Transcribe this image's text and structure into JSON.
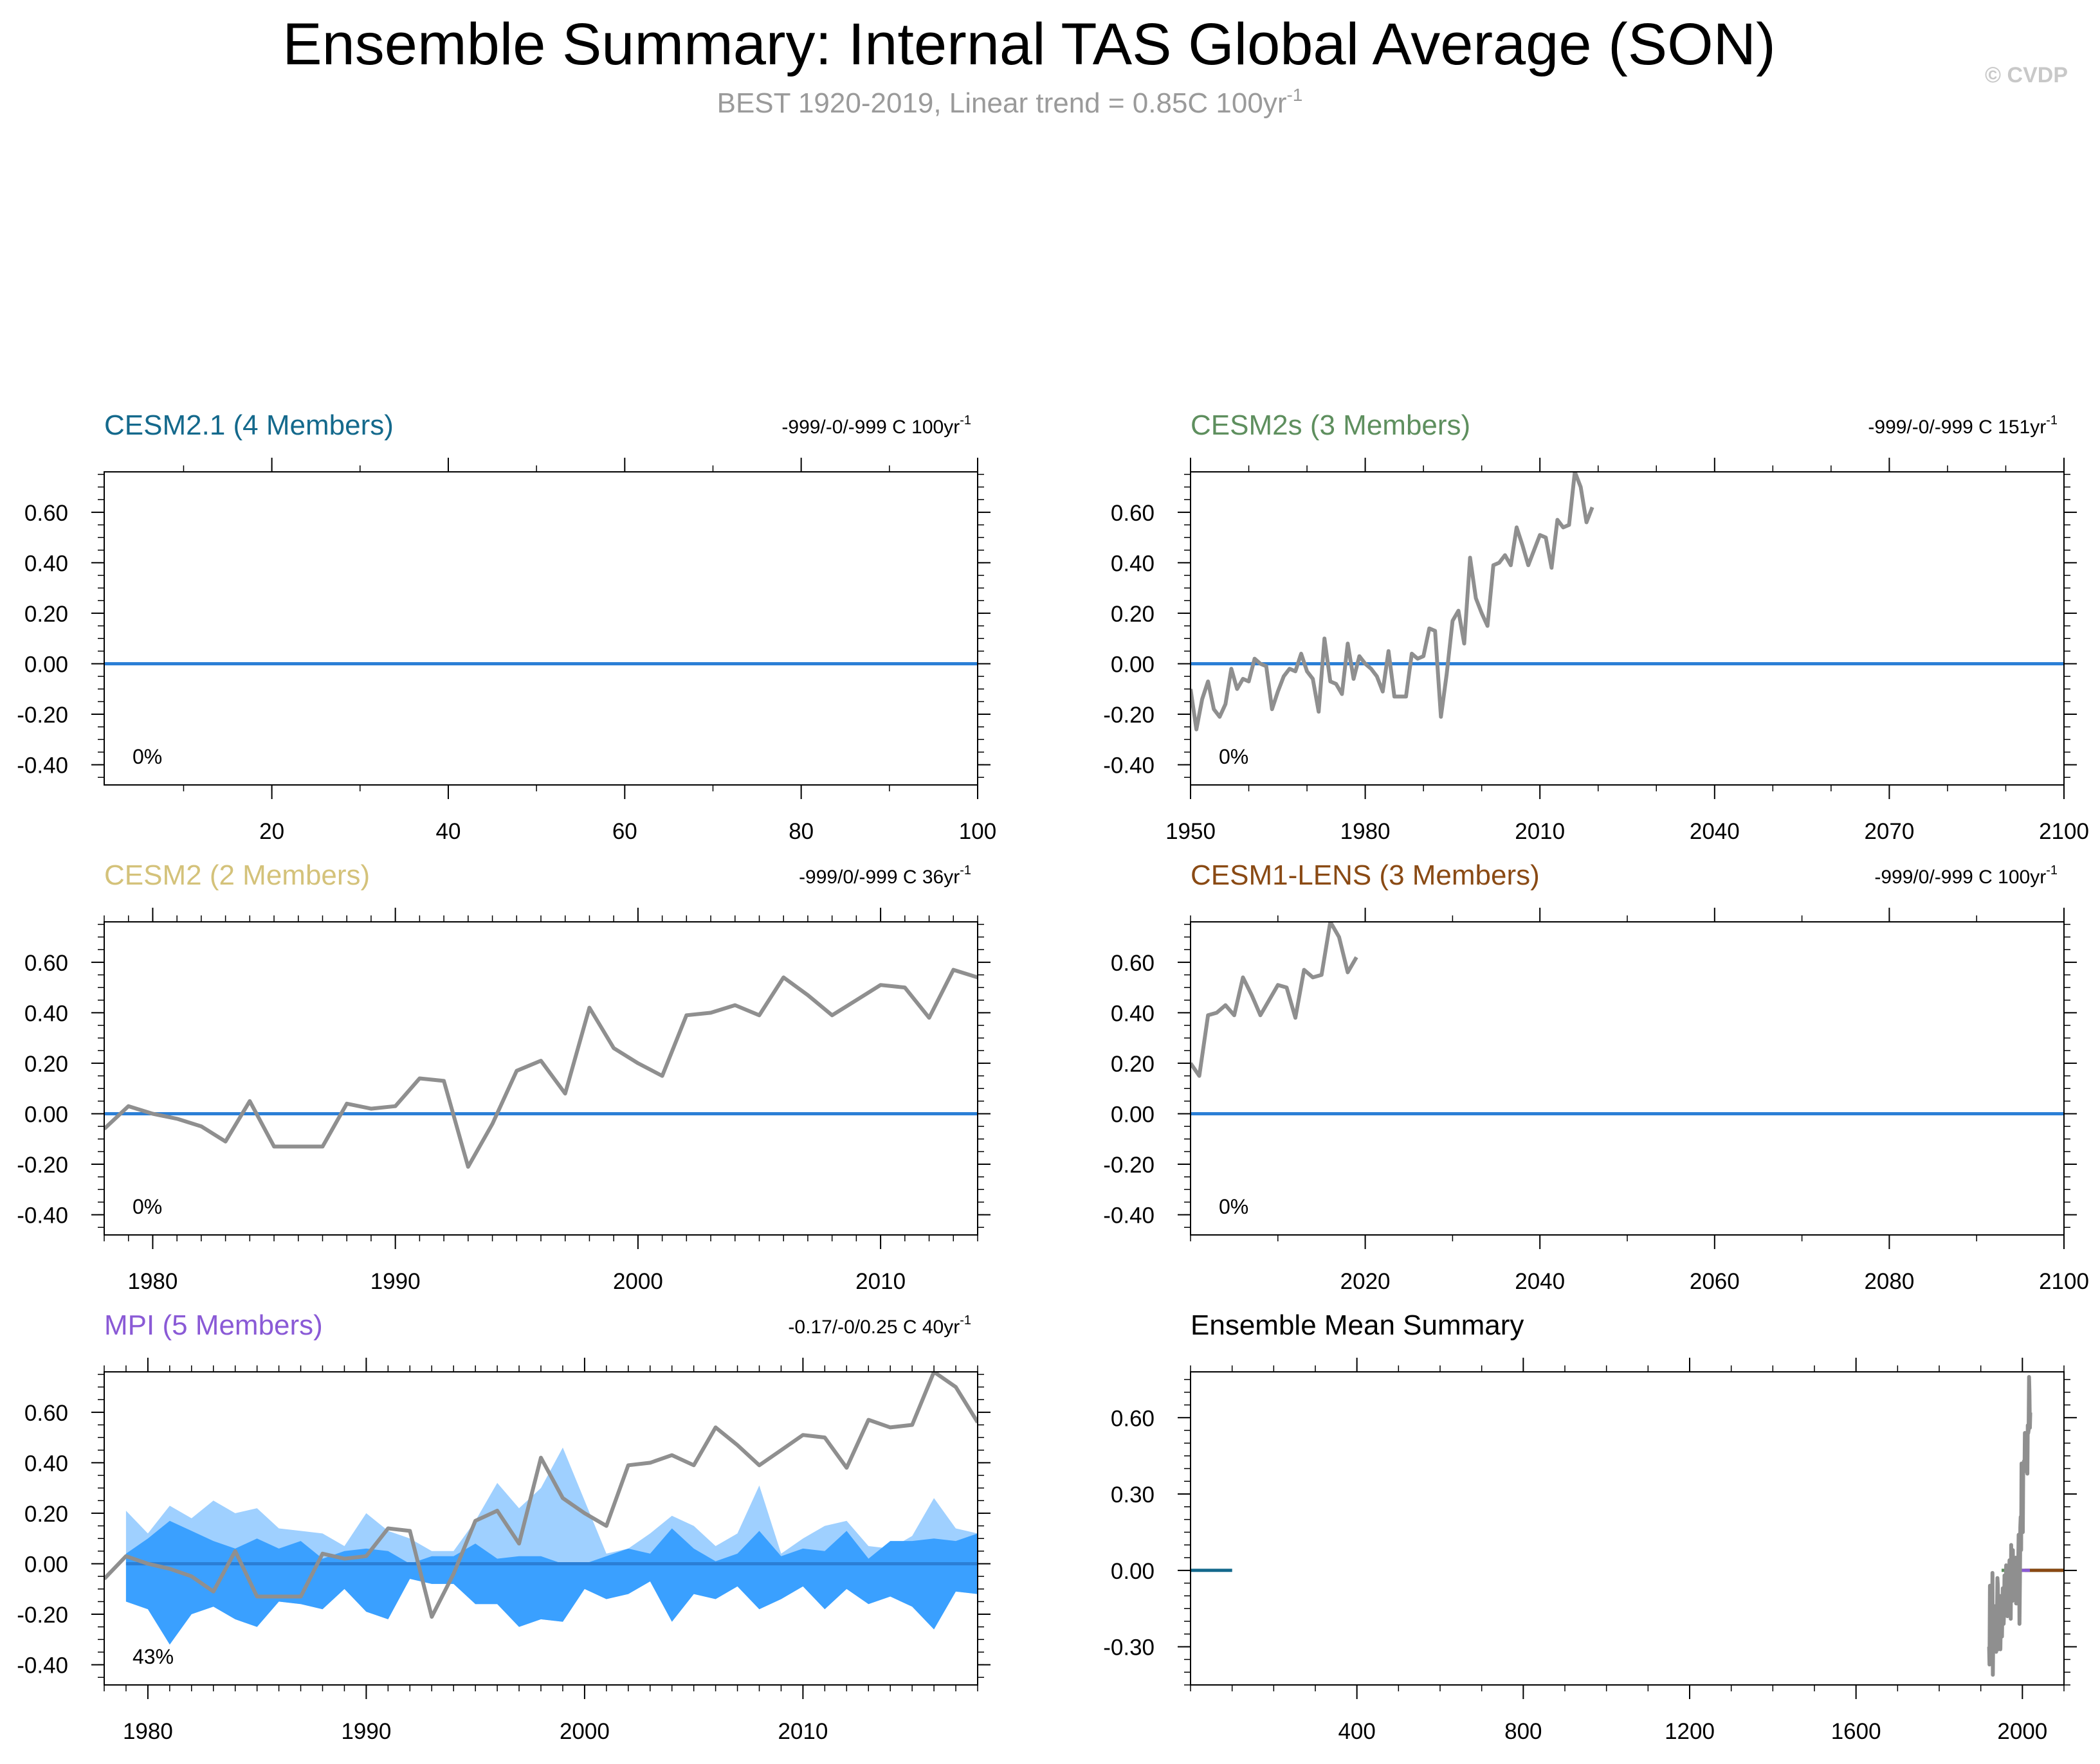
{
  "header": {
    "title": "Ensemble Summary: Internal TAS Global Average (SON)",
    "subtitle": "BEST 1920-2019, Linear trend = 0.85C 100yr",
    "subtitle_sup": "-1",
    "copyright": "© CVDP"
  },
  "colors": {
    "obs_line": "#8f8f8f",
    "zero_line": "#2b7fd6",
    "spread_outer": "#9fd0ff",
    "spread_inner": "#3aa0ff"
  },
  "observations": {
    "years": [
      1920,
      1921,
      1922,
      1923,
      1924,
      1925,
      1926,
      1927,
      1928,
      1929,
      1930,
      1931,
      1932,
      1933,
      1934,
      1935,
      1936,
      1937,
      1938,
      1939,
      1940,
      1941,
      1942,
      1943,
      1944,
      1945,
      1946,
      1947,
      1948,
      1949,
      1950,
      1951,
      1952,
      1953,
      1954,
      1955,
      1956,
      1957,
      1958,
      1959,
      1960,
      1961,
      1962,
      1963,
      1964,
      1965,
      1966,
      1967,
      1968,
      1969,
      1970,
      1971,
      1972,
      1973,
      1974,
      1975,
      1976,
      1977,
      1978,
      1979,
      1980,
      1981,
      1982,
      1983,
      1984,
      1985,
      1986,
      1987,
      1988,
      1989,
      1990,
      1991,
      1992,
      1993,
      1994,
      1995,
      1996,
      1997,
      1998,
      1999,
      2000,
      2001,
      2002,
      2003,
      2004,
      2005,
      2006,
      2007,
      2008,
      2009,
      2010,
      2011,
      2012,
      2013,
      2014,
      2015,
      2016,
      2017,
      2018,
      2019
    ],
    "values": [
      -0.3,
      -0.37,
      -0.06,
      -0.11,
      -0.06,
      -0.11,
      -0.31,
      -0.35,
      -0.01,
      -0.41,
      -0.24,
      -0.21,
      -0.14,
      -0.21,
      -0.15,
      -0.2,
      -0.29,
      -0.32,
      -0.14,
      -0.16,
      -0.03,
      -0.06,
      -0.31,
      -0.21,
      -0.11,
      -0.1,
      -0.22,
      -0.31,
      -0.21,
      -0.13,
      -0.1,
      -0.26,
      -0.14,
      -0.07,
      -0.18,
      -0.21,
      -0.16,
      -0.02,
      -0.1,
      -0.06,
      -0.07,
      0.02,
      0.0,
      -0.01,
      -0.18,
      -0.11,
      -0.05,
      -0.02,
      -0.03,
      0.04,
      -0.03,
      -0.06,
      -0.19,
      0.1,
      -0.07,
      -0.08,
      -0.12,
      0.08,
      -0.06,
      0.03,
      0.0,
      -0.02,
      -0.05,
      -0.11,
      0.05,
      -0.13,
      -0.13,
      -0.13,
      0.04,
      0.02,
      0.03,
      0.14,
      0.13,
      -0.21,
      -0.04,
      0.17,
      0.21,
      0.08,
      0.42,
      0.26,
      0.2,
      0.15,
      0.39,
      0.4,
      0.43,
      0.39,
      0.54,
      0.47,
      0.39,
      0.45,
      0.51,
      0.5,
      0.38,
      0.57,
      0.54,
      0.55,
      0.76,
      0.7,
      0.56,
      0.62
    ]
  },
  "panels": [
    {
      "title": "CESM2.1 (4 Members)",
      "title_color": "#14698c",
      "trend": "-999/-0/-999 C 100yr",
      "trend_sup": "-1",
      "percent": "0%",
      "x_ticks": [
        "20",
        "40",
        "60",
        "80",
        "100"
      ],
      "y_ticks": [
        "0.60",
        "0.40",
        "0.20",
        "0.00",
        "-0.20",
        "-0.40"
      ]
    },
    {
      "title": "CESM2s (3 Members)",
      "title_color": "#5e8f5e",
      "trend": "-999/-0/-999 C 151yr",
      "trend_sup": "-1",
      "percent": "0%",
      "x_ticks": [
        "1950",
        "1980",
        "2010",
        "2040",
        "2070",
        "2100"
      ],
      "y_ticks": [
        "0.60",
        "0.40",
        "0.20",
        "0.00",
        "-0.20",
        "-0.40"
      ]
    },
    {
      "title": "CESM2 (2 Members)",
      "title_color": "#d4c27a",
      "trend": "-999/0/-999 C 36yr",
      "trend_sup": "-1",
      "percent": "0%",
      "x_ticks": [
        "1980",
        "1990",
        "2000",
        "2010"
      ],
      "y_ticks": [
        "0.60",
        "0.40",
        "0.20",
        "0.00",
        "-0.20",
        "-0.40"
      ]
    },
    {
      "title": "CESM1-LENS (3 Members)",
      "title_color": "#8a4a14",
      "trend": "-999/0/-999 C 100yr",
      "trend_sup": "-1",
      "percent": "0%",
      "x_ticks": [
        "2020",
        "2040",
        "2060",
        "2080",
        "2100"
      ],
      "y_ticks": [
        "0.60",
        "0.40",
        "0.20",
        "0.00",
        "-0.20",
        "-0.40"
      ]
    },
    {
      "title": "MPI (5 Members)",
      "title_color": "#8a5ad6",
      "trend": "-0.17/-0/0.25 C 40yr",
      "trend_sup": "-1",
      "percent": "43%",
      "x_ticks": [
        "1980",
        "1990",
        "2000",
        "2010"
      ],
      "y_ticks": [
        "0.60",
        "0.40",
        "0.20",
        "0.00",
        "-0.20",
        "-0.40"
      ]
    },
    {
      "title": "Ensemble Mean Summary",
      "title_color": "#000000",
      "trend": "",
      "trend_sup": "",
      "percent": "",
      "x_ticks": [
        "400",
        "800",
        "1200",
        "1600",
        "2000"
      ],
      "y_ticks": [
        "0.60",
        "0.30",
        "0.00",
        "-0.30"
      ]
    }
  ],
  "chart_data": [
    {
      "type": "line",
      "title": "CESM2.1 (4 Members)",
      "xlim": [
        1,
        100
      ],
      "ylim": [
        -0.48,
        0.76
      ],
      "series": [
        {
          "name": "CESM2.1 ensemble mean",
          "x": [
            1,
            100
          ],
          "y": [
            0.0,
            0.0
          ]
        }
      ]
    },
    {
      "type": "line",
      "title": "CESM2s (3 Members)",
      "xlim": [
        1950,
        2100
      ],
      "ylim": [
        -0.48,
        0.76
      ],
      "series": [
        {
          "name": "CESM2s ensemble mean",
          "x": [
            1950,
            2100
          ],
          "y": [
            0.0,
            0.0
          ]
        },
        {
          "name": "BEST observations",
          "x_from": "observations.years",
          "y_from": "observations.values",
          "x_range": [
            1950,
            2019
          ]
        }
      ]
    },
    {
      "type": "line",
      "title": "CESM2 (2 Members)",
      "xlim": [
        1978,
        2014
      ],
      "ylim": [
        -0.48,
        0.76
      ],
      "series": [
        {
          "name": "CESM2 ensemble mean",
          "x": [
            1978,
            2014
          ],
          "y": [
            0.0,
            0.0
          ]
        },
        {
          "name": "BEST observations",
          "x_from": "observations.years",
          "y_from": "observations.values",
          "x_range": [
            1978,
            2014
          ]
        }
      ]
    },
    {
      "type": "line",
      "title": "CESM1-LENS (3 Members)",
      "xlim": [
        2000,
        2100
      ],
      "ylim": [
        -0.48,
        0.76
      ],
      "series": [
        {
          "name": "CESM1-LENS ensemble mean",
          "x": [
            2000,
            2100
          ],
          "y": [
            0.0,
            0.0
          ]
        },
        {
          "name": "BEST observations",
          "x_from": "observations.years",
          "y_from": "observations.values",
          "x_range": [
            2000,
            2019
          ]
        }
      ]
    },
    {
      "type": "area",
      "title": "MPI (5 Members)",
      "xlim": [
        1978,
        2018
      ],
      "ylim": [
        -0.48,
        0.76
      ],
      "x": [
        1979,
        1980,
        1981,
        1982,
        1983,
        1984,
        1985,
        1986,
        1987,
        1988,
        1989,
        1990,
        1991,
        1992,
        1993,
        1994,
        1995,
        1996,
        1997,
        1998,
        1999,
        2000,
        2001,
        2002,
        2003,
        2004,
        2005,
        2006,
        2007,
        2008,
        2009,
        2010,
        2011,
        2012,
        2013,
        2014,
        2015,
        2016,
        2017,
        2018
      ],
      "spread_upper_outer": [
        0.21,
        0.12,
        0.23,
        0.18,
        0.25,
        0.2,
        0.22,
        0.14,
        0.13,
        0.12,
        0.07,
        0.2,
        0.13,
        0.1,
        0.05,
        0.05,
        0.17,
        0.32,
        0.22,
        0.3,
        0.46,
        0.25,
        0.04,
        0.06,
        0.12,
        0.19,
        0.15,
        0.07,
        0.12,
        0.31,
        0.04,
        0.1,
        0.15,
        0.17,
        0.07,
        0.06,
        0.11,
        0.26,
        0.14,
        0.12
      ],
      "spread_upper_inner": [
        0.04,
        0.1,
        0.17,
        0.13,
        0.09,
        0.06,
        0.1,
        0.06,
        0.09,
        0.02,
        0.05,
        0.06,
        0.05,
        0.0,
        0.03,
        0.03,
        0.08,
        0.02,
        0.03,
        0.03,
        0.0,
        0.0,
        0.03,
        0.06,
        0.04,
        0.14,
        0.06,
        0.01,
        0.04,
        0.13,
        0.03,
        0.06,
        0.05,
        0.13,
        0.02,
        0.09,
        0.09,
        0.1,
        0.09,
        0.12
      ],
      "spread_lower": [
        -0.15,
        -0.18,
        -0.32,
        -0.2,
        -0.17,
        -0.22,
        -0.25,
        -0.15,
        -0.16,
        -0.18,
        -0.1,
        -0.19,
        -0.22,
        -0.06,
        -0.08,
        -0.08,
        -0.16,
        -0.16,
        -0.25,
        -0.22,
        -0.23,
        -0.1,
        -0.14,
        -0.12,
        -0.07,
        -0.23,
        -0.12,
        -0.14,
        -0.09,
        -0.18,
        -0.14,
        -0.09,
        -0.18,
        -0.1,
        -0.16,
        -0.13,
        -0.17,
        -0.26,
        -0.11,
        -0.12
      ],
      "series": [
        {
          "name": "MPI ensemble mean",
          "x": [
            1979,
            2018
          ],
          "y": [
            0.0,
            0.0
          ]
        },
        {
          "name": "BEST observations",
          "x_from": "observations.years",
          "y_from": "observations.values",
          "x_range": [
            1978,
            2018
          ]
        }
      ]
    },
    {
      "type": "line",
      "title": "Ensemble Mean Summary",
      "xlim": [
        0,
        2100
      ],
      "ylim": [
        -0.45,
        0.78
      ],
      "series": [
        {
          "name": "CESM2.1",
          "color": "#14698c",
          "x": [
            1,
            100
          ],
          "y": [
            0.0,
            0.0
          ]
        },
        {
          "name": "CESM2s",
          "color": "#5e8f5e",
          "x": [
            1950,
            2100
          ],
          "y": [
            0.0,
            0.0
          ]
        },
        {
          "name": "CESM2",
          "color": "#d4c27a",
          "x": [
            1979,
            2014
          ],
          "y": [
            0.0,
            0.0
          ]
        },
        {
          "name": "CESM1-LENS",
          "color": "#8a4a14",
          "x": [
            2006,
            2100
          ],
          "y": [
            0.0,
            0.0
          ]
        },
        {
          "name": "MPI",
          "color": "#8a5ad6",
          "x": [
            1979,
            2018
          ],
          "y": [
            0.0,
            0.0
          ]
        },
        {
          "name": "BEST observations",
          "color": "#8f8f8f",
          "x_from": "observations.years",
          "y_from": "observations.values",
          "x_range": [
            1920,
            2019
          ]
        }
      ]
    }
  ]
}
